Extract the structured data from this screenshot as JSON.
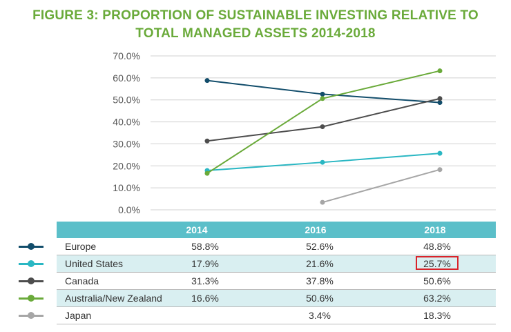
{
  "title_line1": "FIGURE 3: PROPORTION OF SUSTAINABLE INVESTING RELATIVE TO",
  "title_line2": "TOTAL MANAGED ASSETS 2014-2018",
  "chart_data": {
    "type": "line",
    "title": "FIGURE 3: PROPORTION OF SUSTAINABLE INVESTING RELATIVE TO TOTAL MANAGED ASSETS 2014-2018",
    "categories": [
      "2014",
      "2016",
      "2018"
    ],
    "yticks": [
      "0.0%",
      "10.0%",
      "20.0%",
      "30.0%",
      "40.0%",
      "50.0%",
      "60.0%",
      "70.0%"
    ],
    "ylim": [
      0,
      70
    ],
    "grid": true,
    "series": [
      {
        "name": "Europe",
        "color": "#124d6b",
        "values": [
          58.8,
          52.6,
          48.8
        ],
        "labels": [
          "58.8%",
          "52.6%",
          "48.8%"
        ]
      },
      {
        "name": "United States",
        "color": "#2ab7c3",
        "values": [
          17.9,
          21.6,
          25.7
        ],
        "labels": [
          "17.9%",
          "21.6%",
          "25.7%"
        ]
      },
      {
        "name": "Canada",
        "color": "#4d4d4d",
        "values": [
          31.3,
          37.8,
          50.6
        ],
        "labels": [
          "31.3%",
          "37.8%",
          "50.6%"
        ]
      },
      {
        "name": "Australia/New Zealand",
        "color": "#6aaa3a",
        "values": [
          16.6,
          50.6,
          63.2
        ],
        "labels": [
          "16.6%",
          "50.6%",
          "63.2%"
        ]
      },
      {
        "name": "Japan",
        "color": "#a6a6a6",
        "values": [
          null,
          3.4,
          18.3
        ],
        "labels": [
          "",
          "3.4%",
          "18.3%"
        ]
      }
    ],
    "highlight": {
      "series": "United States",
      "year": "2018"
    }
  }
}
